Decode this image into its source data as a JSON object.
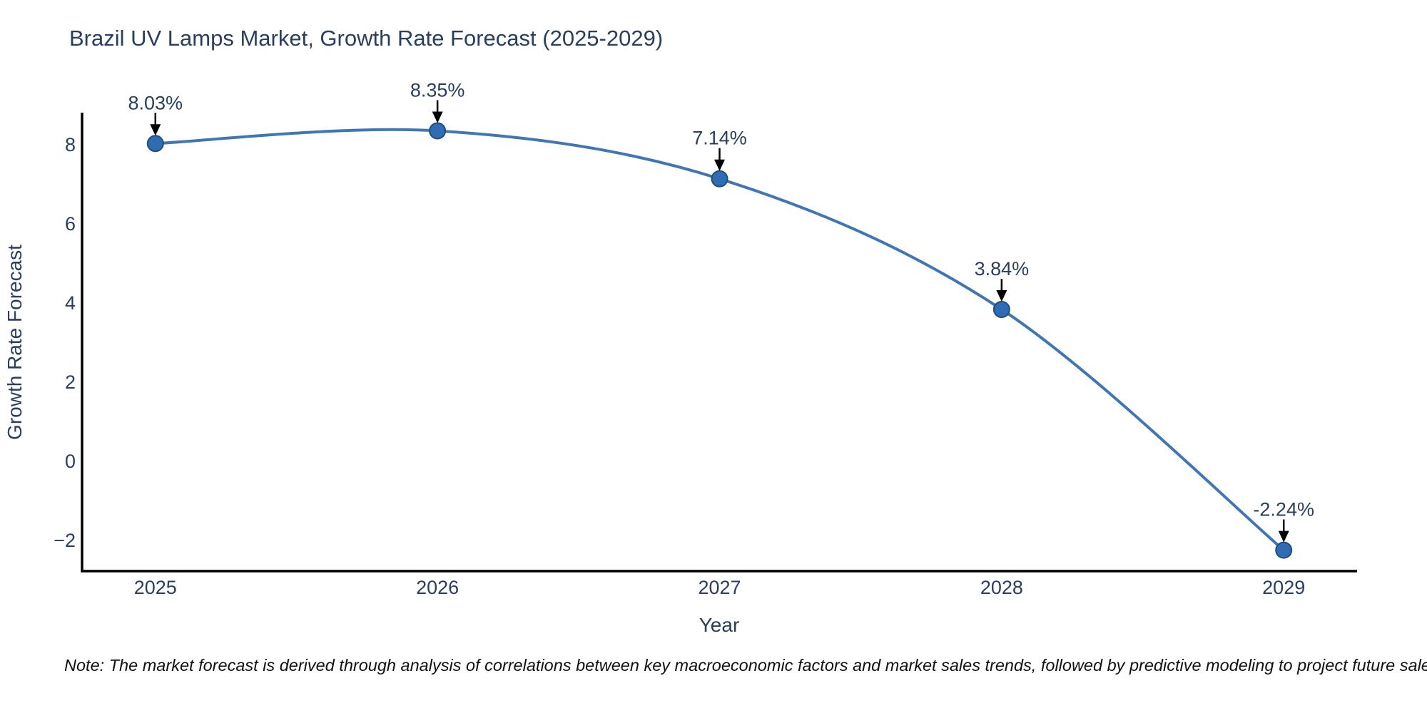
{
  "title": "Brazil UV Lamps Market, Growth Rate Forecast (2025-2029)",
  "footnote": "Note: The market forecast is derived through analysis of correlations between key macroeconomic factors and market sales trends, followed by predictive modeling to project future sales",
  "colors": {
    "background": "#ffffff",
    "line": "#3f76b3",
    "marker_fill": "#306cb4",
    "marker_edge": "#1f4e79",
    "axis_line": "#000000",
    "arrow": "#000000",
    "title_text": "#2a3f5f",
    "tick_text": "#2a3f5f",
    "annotation_text": "#2a3f5f",
    "footnote_text": "#111111"
  },
  "chart_data": {
    "type": "line",
    "title": "Brazil UV Lamps Market, Growth Rate Forecast (2025-2029)",
    "xlabel": "Year",
    "ylabel": "Growth Rate Forecast",
    "x": [
      2025,
      2026,
      2027,
      2028,
      2029
    ],
    "y": [
      8.03,
      8.35,
      7.14,
      3.84,
      -2.24
    ],
    "point_labels": [
      "8.03%",
      "8.35%",
      "7.14%",
      "3.84%",
      "-2.24%"
    ],
    "xtick_labels": [
      "2025",
      "2026",
      "2027",
      "2028",
      "2029"
    ],
    "ytick_values": [
      -2,
      0,
      2,
      4,
      6,
      8
    ],
    "ytick_labels": [
      "−2",
      "0",
      "2",
      "4",
      "6",
      "8"
    ],
    "xlim": [
      2024.74,
      2029.26
    ],
    "ylim": [
      -2.77,
      8.81
    ],
    "grid": false,
    "legend_position": "none",
    "line_shape": "spline",
    "line_width": 4,
    "marker_radius": 11
  }
}
